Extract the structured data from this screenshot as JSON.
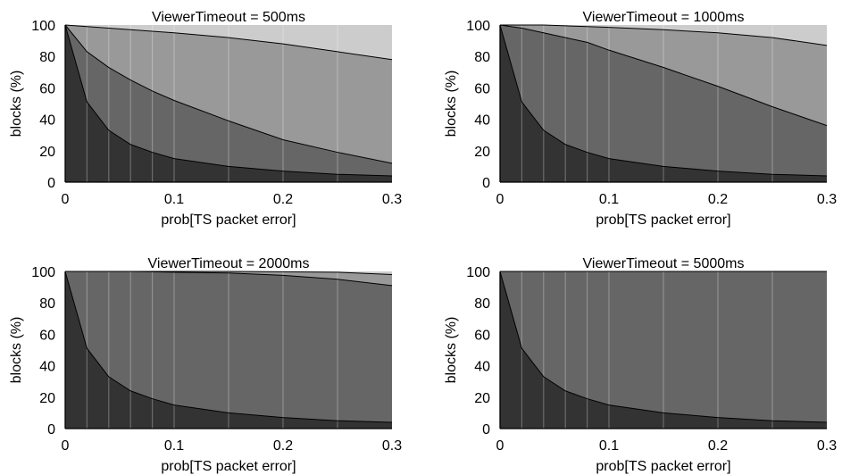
{
  "chart_data": [
    {
      "type": "area",
      "title": "ViewerTimeout = 500ms",
      "xlabel": "prob[TS packet error]",
      "ylabel": "blocks (%)",
      "xlim": [
        0,
        0.3
      ],
      "ylim": [
        0,
        100
      ],
      "xticks": [
        "0",
        "0.1",
        "0.2",
        "0.3"
      ],
      "yticks": [
        "0",
        "20",
        "40",
        "60",
        "80",
        "100"
      ],
      "x": [
        0,
        0.02,
        0.04,
        0.06,
        0.08,
        0.1,
        0.15,
        0.2,
        0.25,
        0.3
      ],
      "boundaries": [
        [
          100,
          51,
          33,
          24,
          19,
          15,
          10,
          7,
          5,
          4
        ],
        [
          100,
          83,
          73,
          65,
          58,
          52,
          39,
          27,
          19,
          12
        ],
        [
          100,
          99,
          98,
          97,
          96,
          95,
          92,
          88,
          83,
          78
        ]
      ],
      "band_colors": [
        "#333333",
        "#666666",
        "#999999",
        "#cccccc"
      ],
      "grid": "vertical lines at each x value"
    },
    {
      "type": "area",
      "title": "ViewerTimeout = 1000ms",
      "xlabel": "prob[TS packet error]",
      "ylabel": "blocks (%)",
      "xlim": [
        0,
        0.3
      ],
      "ylim": [
        0,
        100
      ],
      "xticks": [
        "0",
        "0.1",
        "0.2",
        "0.3"
      ],
      "yticks": [
        "0",
        "20",
        "40",
        "60",
        "80",
        "100"
      ],
      "x": [
        0,
        0.02,
        0.04,
        0.06,
        0.08,
        0.1,
        0.15,
        0.2,
        0.25,
        0.3
      ],
      "boundaries": [
        [
          100,
          51,
          33,
          24,
          19,
          15,
          10,
          7,
          5,
          4
        ],
        [
          100,
          98,
          95,
          92,
          89,
          84,
          73,
          61,
          48,
          36
        ],
        [
          100,
          100,
          100,
          99.5,
          99,
          98.5,
          97,
          95,
          92,
          87
        ]
      ],
      "band_colors": [
        "#333333",
        "#666666",
        "#999999",
        "#cccccc"
      ],
      "grid": "vertical lines at each x value"
    },
    {
      "type": "area",
      "title": "ViewerTimeout = 2000ms",
      "xlabel": "prob[TS packet error]",
      "ylabel": "blocks (%)",
      "xlim": [
        0,
        0.3
      ],
      "ylim": [
        0,
        100
      ],
      "xticks": [
        "0",
        "0.1",
        "0.2",
        "0.3"
      ],
      "yticks": [
        "0",
        "20",
        "40",
        "60",
        "80",
        "100"
      ],
      "x": [
        0,
        0.02,
        0.04,
        0.06,
        0.08,
        0.1,
        0.15,
        0.2,
        0.25,
        0.3
      ],
      "boundaries": [
        [
          100,
          51,
          33,
          24,
          19,
          15,
          10,
          7,
          5,
          4
        ],
        [
          100,
          100,
          100,
          100,
          99.8,
          99.5,
          99,
          97.5,
          95,
          91
        ],
        [
          100,
          100,
          100,
          100,
          100,
          100,
          100,
          99.8,
          99.5,
          98
        ]
      ],
      "band_colors": [
        "#333333",
        "#666666",
        "#999999",
        "#cccccc"
      ],
      "grid": "vertical lines at each x value"
    },
    {
      "type": "area",
      "title": "ViewerTimeout = 5000ms",
      "xlabel": "prob[TS packet error]",
      "ylabel": "blocks (%)",
      "xlim": [
        0,
        0.3
      ],
      "ylim": [
        0,
        100
      ],
      "xticks": [
        "0",
        "0.1",
        "0.2",
        "0.3"
      ],
      "yticks": [
        "0",
        "20",
        "40",
        "60",
        "80",
        "100"
      ],
      "x": [
        0,
        0.02,
        0.04,
        0.06,
        0.08,
        0.1,
        0.15,
        0.2,
        0.25,
        0.3
      ],
      "boundaries": [
        [
          100,
          51,
          33,
          24,
          19,
          15,
          10,
          7,
          5,
          4
        ],
        [
          100,
          100,
          100,
          100,
          100,
          100,
          100,
          100,
          100,
          100
        ],
        [
          100,
          100,
          100,
          100,
          100,
          100,
          100,
          100,
          100,
          100
        ]
      ],
      "band_colors": [
        "#333333",
        "#666666",
        "#999999",
        "#cccccc"
      ],
      "grid": "vertical lines at each x value"
    }
  ]
}
